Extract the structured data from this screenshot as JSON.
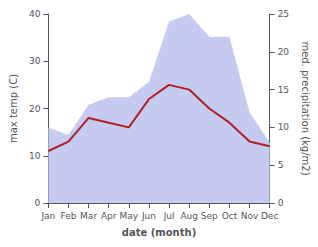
{
  "chart_data": {
    "type": "line",
    "xlabel": "date (month)",
    "ylabel": "max temp (C)",
    "y2label": "med. precipitation (kg/m2)",
    "categories": [
      "Jan",
      "Feb",
      "Mar",
      "Apr",
      "May",
      "Jun",
      "Jul",
      "Aug",
      "Sep",
      "Oct",
      "Nov",
      "Dec"
    ],
    "series": [
      {
        "type": "area",
        "color": "#c5caf0",
        "axis": "y2",
        "values": [
          10,
          9,
          13,
          14,
          14,
          16,
          24,
          25,
          22,
          22,
          12,
          8
        ]
      },
      {
        "type": "line",
        "color": "#b02020",
        "values": [
          11,
          13,
          18,
          17,
          16,
          22,
          25,
          24,
          20,
          17,
          13,
          12
        ]
      }
    ],
    "ylim": [
      0,
      40
    ],
    "yticks": [
      0,
      10,
      20,
      30,
      40
    ],
    "y2lim": [
      0,
      25
    ],
    "y2ticks": [
      0,
      5,
      10,
      15,
      20,
      25
    ],
    "grid": false
  }
}
